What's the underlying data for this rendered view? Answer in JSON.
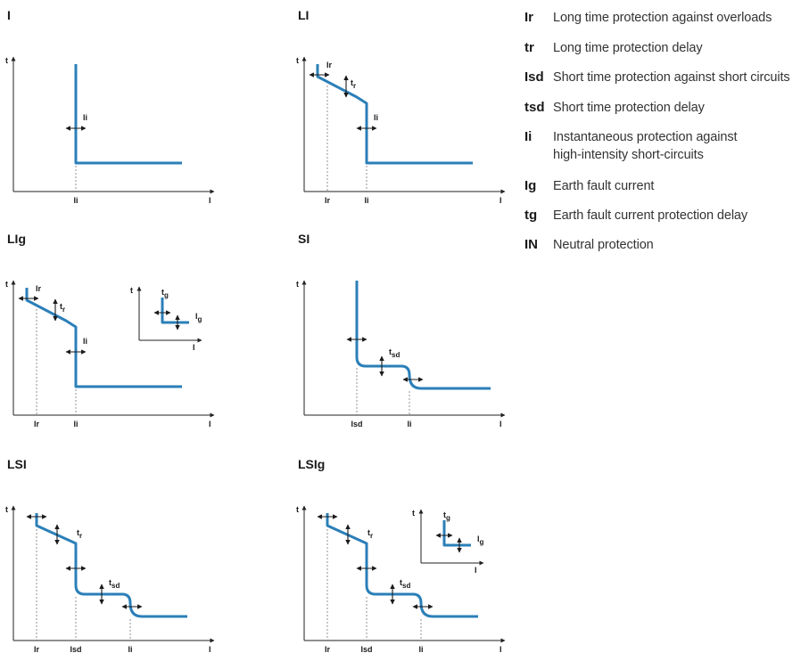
{
  "panels": [
    {
      "id": "I",
      "title": "I",
      "axis_x": "I",
      "axis_y": "t",
      "curve_type": "I",
      "settings": [
        "Ii"
      ],
      "x_ticks": [
        "Ii"
      ],
      "inset": null
    },
    {
      "id": "LI",
      "title": "LI",
      "axis_x": "I",
      "axis_y": "t",
      "curve_type": "LI",
      "settings": [
        "Ir",
        "tr",
        "Ii"
      ],
      "x_ticks": [
        "Ir",
        "Ii"
      ],
      "inset": null
    },
    {
      "id": "LIg",
      "title": "LIg",
      "axis_x": "I",
      "axis_y": "t",
      "curve_type": "LI",
      "settings": [
        "Ir",
        "tr",
        "Ii"
      ],
      "x_ticks": [
        "Ir",
        "Ii"
      ],
      "inset": {
        "axis_x": "I",
        "axis_y": "t",
        "settings": [
          "tg",
          "Ig"
        ]
      }
    },
    {
      "id": "SI",
      "title": "SI",
      "axis_x": "I",
      "axis_y": "t",
      "curve_type": "SI",
      "settings": [
        "tsd"
      ],
      "x_ticks": [
        "Isd",
        "Ii"
      ],
      "inset": null
    },
    {
      "id": "LSI",
      "title": "LSI",
      "axis_x": "I",
      "axis_y": "t",
      "curve_type": "LSI",
      "settings": [
        "tr",
        "tsd"
      ],
      "x_ticks": [
        "Ir",
        "Isd",
        "Ii"
      ],
      "inset": null
    },
    {
      "id": "LSIg",
      "title": "LSIg",
      "axis_x": "I",
      "axis_y": "t",
      "curve_type": "LSI",
      "settings": [
        "tr",
        "tsd"
      ],
      "x_ticks": [
        "Ir",
        "Isd",
        "Ii"
      ],
      "inset": {
        "axis_x": "I",
        "axis_y": "t",
        "settings": [
          "tg",
          "Ig"
        ]
      }
    }
  ],
  "legend": [
    {
      "symbol": "Ir",
      "description": "Long time protection against overloads"
    },
    {
      "symbol": "tr",
      "description": "Long time protection delay"
    },
    {
      "symbol": "Isd",
      "description": "Short time protection against short circuits"
    },
    {
      "symbol": "tsd",
      "description": "Short time protection delay"
    },
    {
      "symbol": "Ii",
      "description": "Instantaneous protection against\nhigh-intensity short-circuits"
    },
    {
      "symbol": "Ig",
      "description": "Earth fault current"
    },
    {
      "symbol": "tg",
      "description": "Earth fault current protection delay"
    },
    {
      "symbol": "IN",
      "description": "Neutral protection"
    }
  ],
  "colors": {
    "curve": "#2b7fb8",
    "axis": "#222222",
    "text": "#1a1a1a"
  }
}
